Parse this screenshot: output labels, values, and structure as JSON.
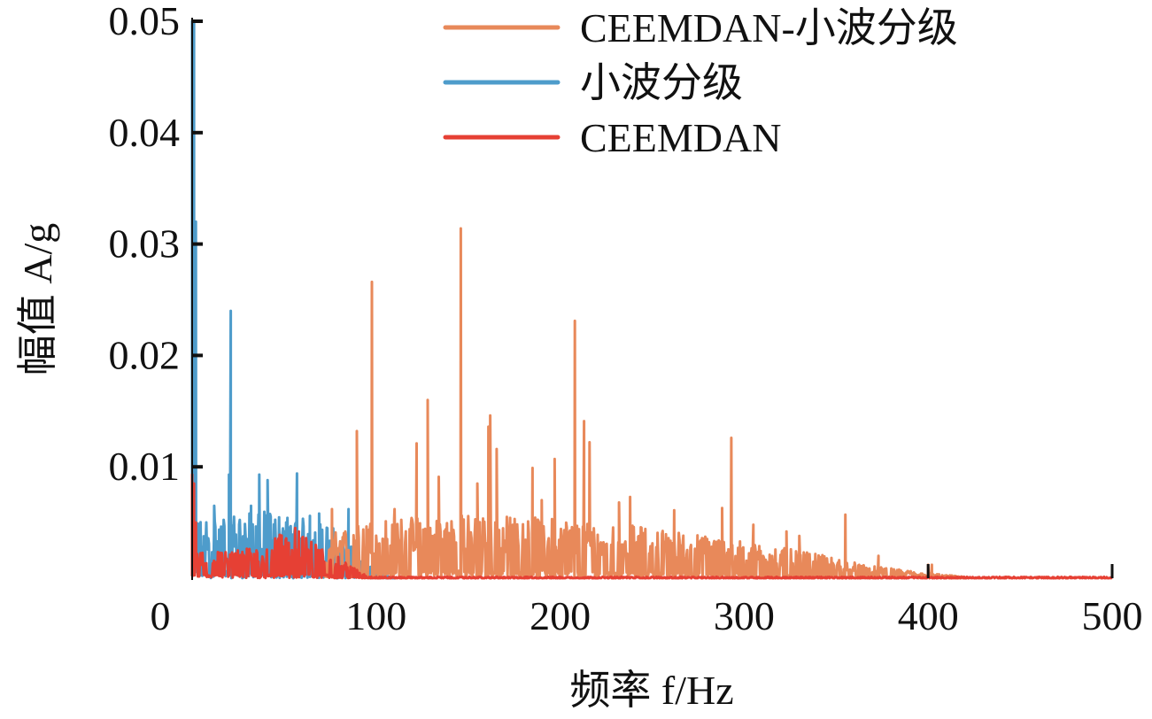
{
  "chart_data": {
    "type": "line",
    "title": "",
    "xlabel": "频率 f/Hz",
    "ylabel": "幅值 A/g",
    "xlim": [
      0,
      500
    ],
    "ylim": [
      0,
      0.05
    ],
    "x_ticks": [
      "0",
      "100",
      "200",
      "300",
      "400",
      "500"
    ],
    "x_tick_values": [
      0,
      100,
      200,
      300,
      400,
      500
    ],
    "y_ticks": [
      "0.01",
      "0.02",
      "0.03",
      "0.04",
      "0.05"
    ],
    "y_tick_values": [
      0.01,
      0.02,
      0.03,
      0.04,
      0.05
    ],
    "grid": false,
    "legend_position": "top-right",
    "series": [
      {
        "name": "小波分级",
        "color": "#4e9ccb",
        "range": [
          0,
          110
        ],
        "envelope": [
          [
            0,
            0.006
          ],
          [
            3,
            0.0045
          ],
          [
            20,
            0.0048
          ],
          [
            40,
            0.005
          ],
          [
            60,
            0.0045
          ],
          [
            75,
            0.004
          ],
          [
            88,
            0.0025
          ],
          [
            95,
            0.001
          ],
          [
            105,
            0.0002
          ],
          [
            110,
            0
          ]
        ],
        "peaks": [
          [
            0,
            0.05
          ],
          [
            1,
            0.05
          ],
          [
            2,
            0.032
          ],
          [
            12,
            0.0065
          ],
          [
            20,
            0.0093
          ],
          [
            21,
            0.024
          ],
          [
            32,
            0.0065
          ],
          [
            36.5,
            0.0093
          ],
          [
            41,
            0.0088
          ],
          [
            57,
            0.0094
          ],
          [
            64,
            0.0056
          ],
          [
            69,
            0.0058
          ],
          [
            85,
            0.0062
          ]
        ]
      },
      {
        "name": "CEEMDAN-小波分级",
        "color": "#e8895a",
        "range": [
          72,
          420
        ],
        "envelope": [
          [
            72,
            0.0015
          ],
          [
            78,
            0.0035
          ],
          [
            100,
            0.0045
          ],
          [
            150,
            0.0048
          ],
          [
            200,
            0.0045
          ],
          [
            250,
            0.0038
          ],
          [
            300,
            0.0028
          ],
          [
            340,
            0.0018
          ],
          [
            370,
            0.0009
          ],
          [
            400,
            0.0004
          ],
          [
            420,
            0.0001
          ]
        ],
        "peaks": [
          [
            76,
            0.0062
          ],
          [
            89.5,
            0.0132
          ],
          [
            97.7,
            0.0266
          ],
          [
            110,
            0.0062
          ],
          [
            122,
            0.0121
          ],
          [
            128,
            0.016
          ],
          [
            134,
            0.0091
          ],
          [
            146,
            0.0314
          ],
          [
            155,
            0.0085
          ],
          [
            161,
            0.0136
          ],
          [
            162,
            0.0146
          ],
          [
            165.5,
            0.0116
          ],
          [
            185,
            0.0099
          ],
          [
            190,
            0.007
          ],
          [
            197,
            0.0107
          ],
          [
            208,
            0.0231
          ],
          [
            213,
            0.0141
          ],
          [
            216,
            0.0122
          ],
          [
            232,
            0.0068
          ],
          [
            238,
            0.0073
          ],
          [
            262,
            0.0061
          ],
          [
            288,
            0.0063
          ],
          [
            293,
            0.0126
          ],
          [
            305,
            0.0048
          ],
          [
            323,
            0.0042
          ],
          [
            330,
            0.0038
          ],
          [
            355,
            0.0057
          ],
          [
            373,
            0.002
          ],
          [
            400,
            0.0012
          ],
          [
            402,
            0.0012
          ]
        ]
      },
      {
        "name": "CEEMDAN",
        "color": "#e64034",
        "range": [
          0,
          500
        ],
        "envelope": [
          [
            0,
            0.003
          ],
          [
            2,
            0.0022
          ],
          [
            20,
            0.002
          ],
          [
            40,
            0.0025
          ],
          [
            50,
            0.0035
          ],
          [
            60,
            0.0032
          ],
          [
            75,
            0.002
          ],
          [
            88,
            0.0008
          ],
          [
            95,
            0.0002
          ],
          [
            100,
            0.0001
          ],
          [
            500,
            0.0001
          ]
        ],
        "peaks": [
          [
            0,
            0.0093
          ],
          [
            1,
            0.0085
          ],
          [
            2,
            0.005
          ],
          [
            56,
            0.0045
          ],
          [
            58,
            0.0042
          ]
        ]
      }
    ],
    "draw_order": [
      0,
      1,
      2
    ],
    "legend_order": [
      1,
      0,
      2
    ]
  }
}
